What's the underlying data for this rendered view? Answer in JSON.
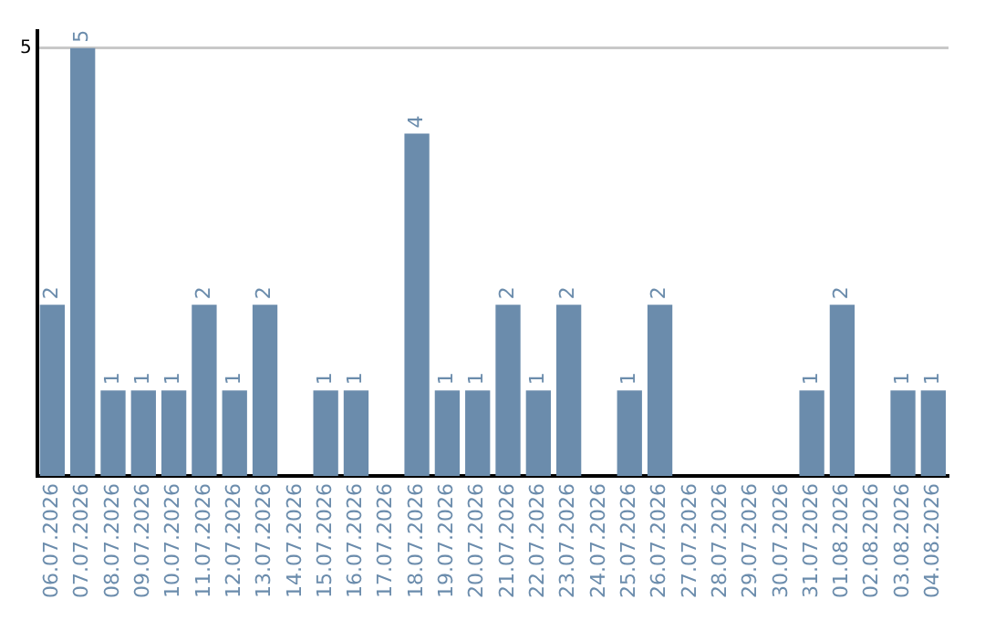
{
  "chart_data": {
    "type": "bar",
    "categories": [
      "06.07.2026",
      "07.07.2026",
      "08.07.2026",
      "09.07.2026",
      "10.07.2026",
      "11.07.2026",
      "12.07.2026",
      "13.07.2026",
      "14.07.2026",
      "15.07.2026",
      "16.07.2026",
      "17.07.2026",
      "18.07.2026",
      "19.07.2026",
      "20.07.2026",
      "21.07.2026",
      "22.07.2026",
      "23.07.2026",
      "24.07.2026",
      "25.07.2026",
      "26.07.2026",
      "27.07.2026",
      "28.07.2026",
      "29.07.2026",
      "30.07.2026",
      "31.07.2026",
      "01.08.2026",
      "02.08.2026",
      "03.08.2026",
      "04.08.2026"
    ],
    "values": [
      2,
      5,
      1,
      1,
      1,
      2,
      1,
      2,
      0,
      1,
      1,
      0,
      4,
      1,
      1,
      2,
      1,
      2,
      0,
      1,
      2,
      0,
      0,
      0,
      0,
      1,
      2,
      0,
      1,
      1
    ],
    "value_labels": [
      "2",
      "5",
      "1",
      "1",
      "1",
      "2",
      "1",
      "2",
      null,
      "1",
      "1",
      null,
      "4",
      "1",
      "1",
      "2",
      "1",
      "2",
      null,
      "1",
      "2",
      null,
      null,
      null,
      null,
      "1",
      "2",
      null,
      "1",
      "1"
    ],
    "color": "#6b8cac",
    "ylim": [
      0,
      5.2
    ],
    "yticks": [
      5
    ],
    "grid": "y",
    "legend": false
  }
}
